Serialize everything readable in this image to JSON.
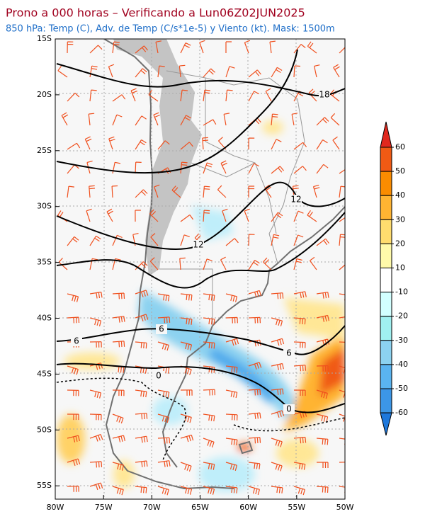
{
  "header": {
    "title": "Prono a 000 horas – Verificando a Lun06Z02JUN2025",
    "subtitle": "850 hPa: Temp (C), Adv. de Temp (C/s*1e-5) y Viento (kt). Mask: 1500m"
  },
  "map": {
    "lat_ticks": [
      "15S",
      "20S",
      "25S",
      "30S",
      "35S",
      "40S",
      "45S",
      "50S",
      "55S"
    ],
    "lon_ticks": [
      "80W",
      "75W",
      "70W",
      "65W",
      "60W",
      "55W",
      "50W"
    ],
    "contour_labels": [
      "18",
      "12",
      "12",
      "6",
      "6",
      "6",
      "0",
      "0"
    ]
  },
  "colorbar": {
    "ticks": [
      60,
      50,
      40,
      30,
      20,
      10,
      -10,
      -20,
      -30,
      -40,
      -50,
      -60
    ]
  }
}
